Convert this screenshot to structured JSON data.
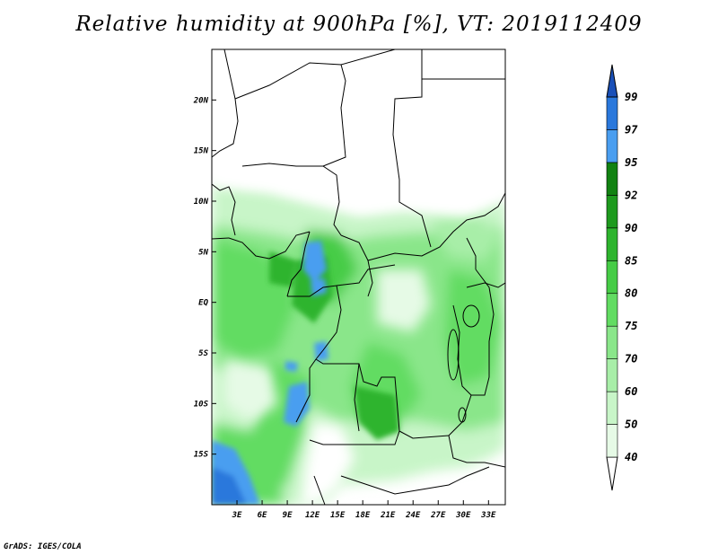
{
  "title": "Relative humidity at 900hPa [%], VT: 2019112409",
  "credit": "GrADS: IGES/COLA",
  "map": {
    "lon_range": [
      0,
      35
    ],
    "lat_range": [
      -20,
      25
    ],
    "lat_ticks": [
      {
        "value": 20,
        "label": "20N"
      },
      {
        "value": 15,
        "label": "15N"
      },
      {
        "value": 10,
        "label": "10N"
      },
      {
        "value": 5,
        "label": "5N"
      },
      {
        "value": 0,
        "label": "EQ"
      },
      {
        "value": -5,
        "label": "5S"
      },
      {
        "value": -10,
        "label": "10S"
      },
      {
        "value": -15,
        "label": "15S"
      }
    ],
    "lon_ticks": [
      {
        "value": 3,
        "label": "3E"
      },
      {
        "value": 6,
        "label": "6E"
      },
      {
        "value": 9,
        "label": "9E"
      },
      {
        "value": 12,
        "label": "12E"
      },
      {
        "value": 15,
        "label": "15E"
      },
      {
        "value": 18,
        "label": "18E"
      },
      {
        "value": 21,
        "label": "21E"
      },
      {
        "value": 24,
        "label": "24E"
      },
      {
        "value": 27,
        "label": "27E"
      },
      {
        "value": 30,
        "label": "30E"
      },
      {
        "value": 33,
        "label": "33E"
      }
    ]
  },
  "colorbar": {
    "levels": [
      "40",
      "50",
      "60",
      "70",
      "75",
      "80",
      "85",
      "90",
      "92",
      "95",
      "97",
      "99"
    ],
    "colors": [
      "#ffffff",
      "#e6fae6",
      "#c8f5c8",
      "#a8eea8",
      "#8ae68a",
      "#62dc62",
      "#46cc46",
      "#2eb42e",
      "#1e9a1e",
      "#128212",
      "#4a9ef0",
      "#2a78dc",
      "#1a50b8"
    ]
  }
}
